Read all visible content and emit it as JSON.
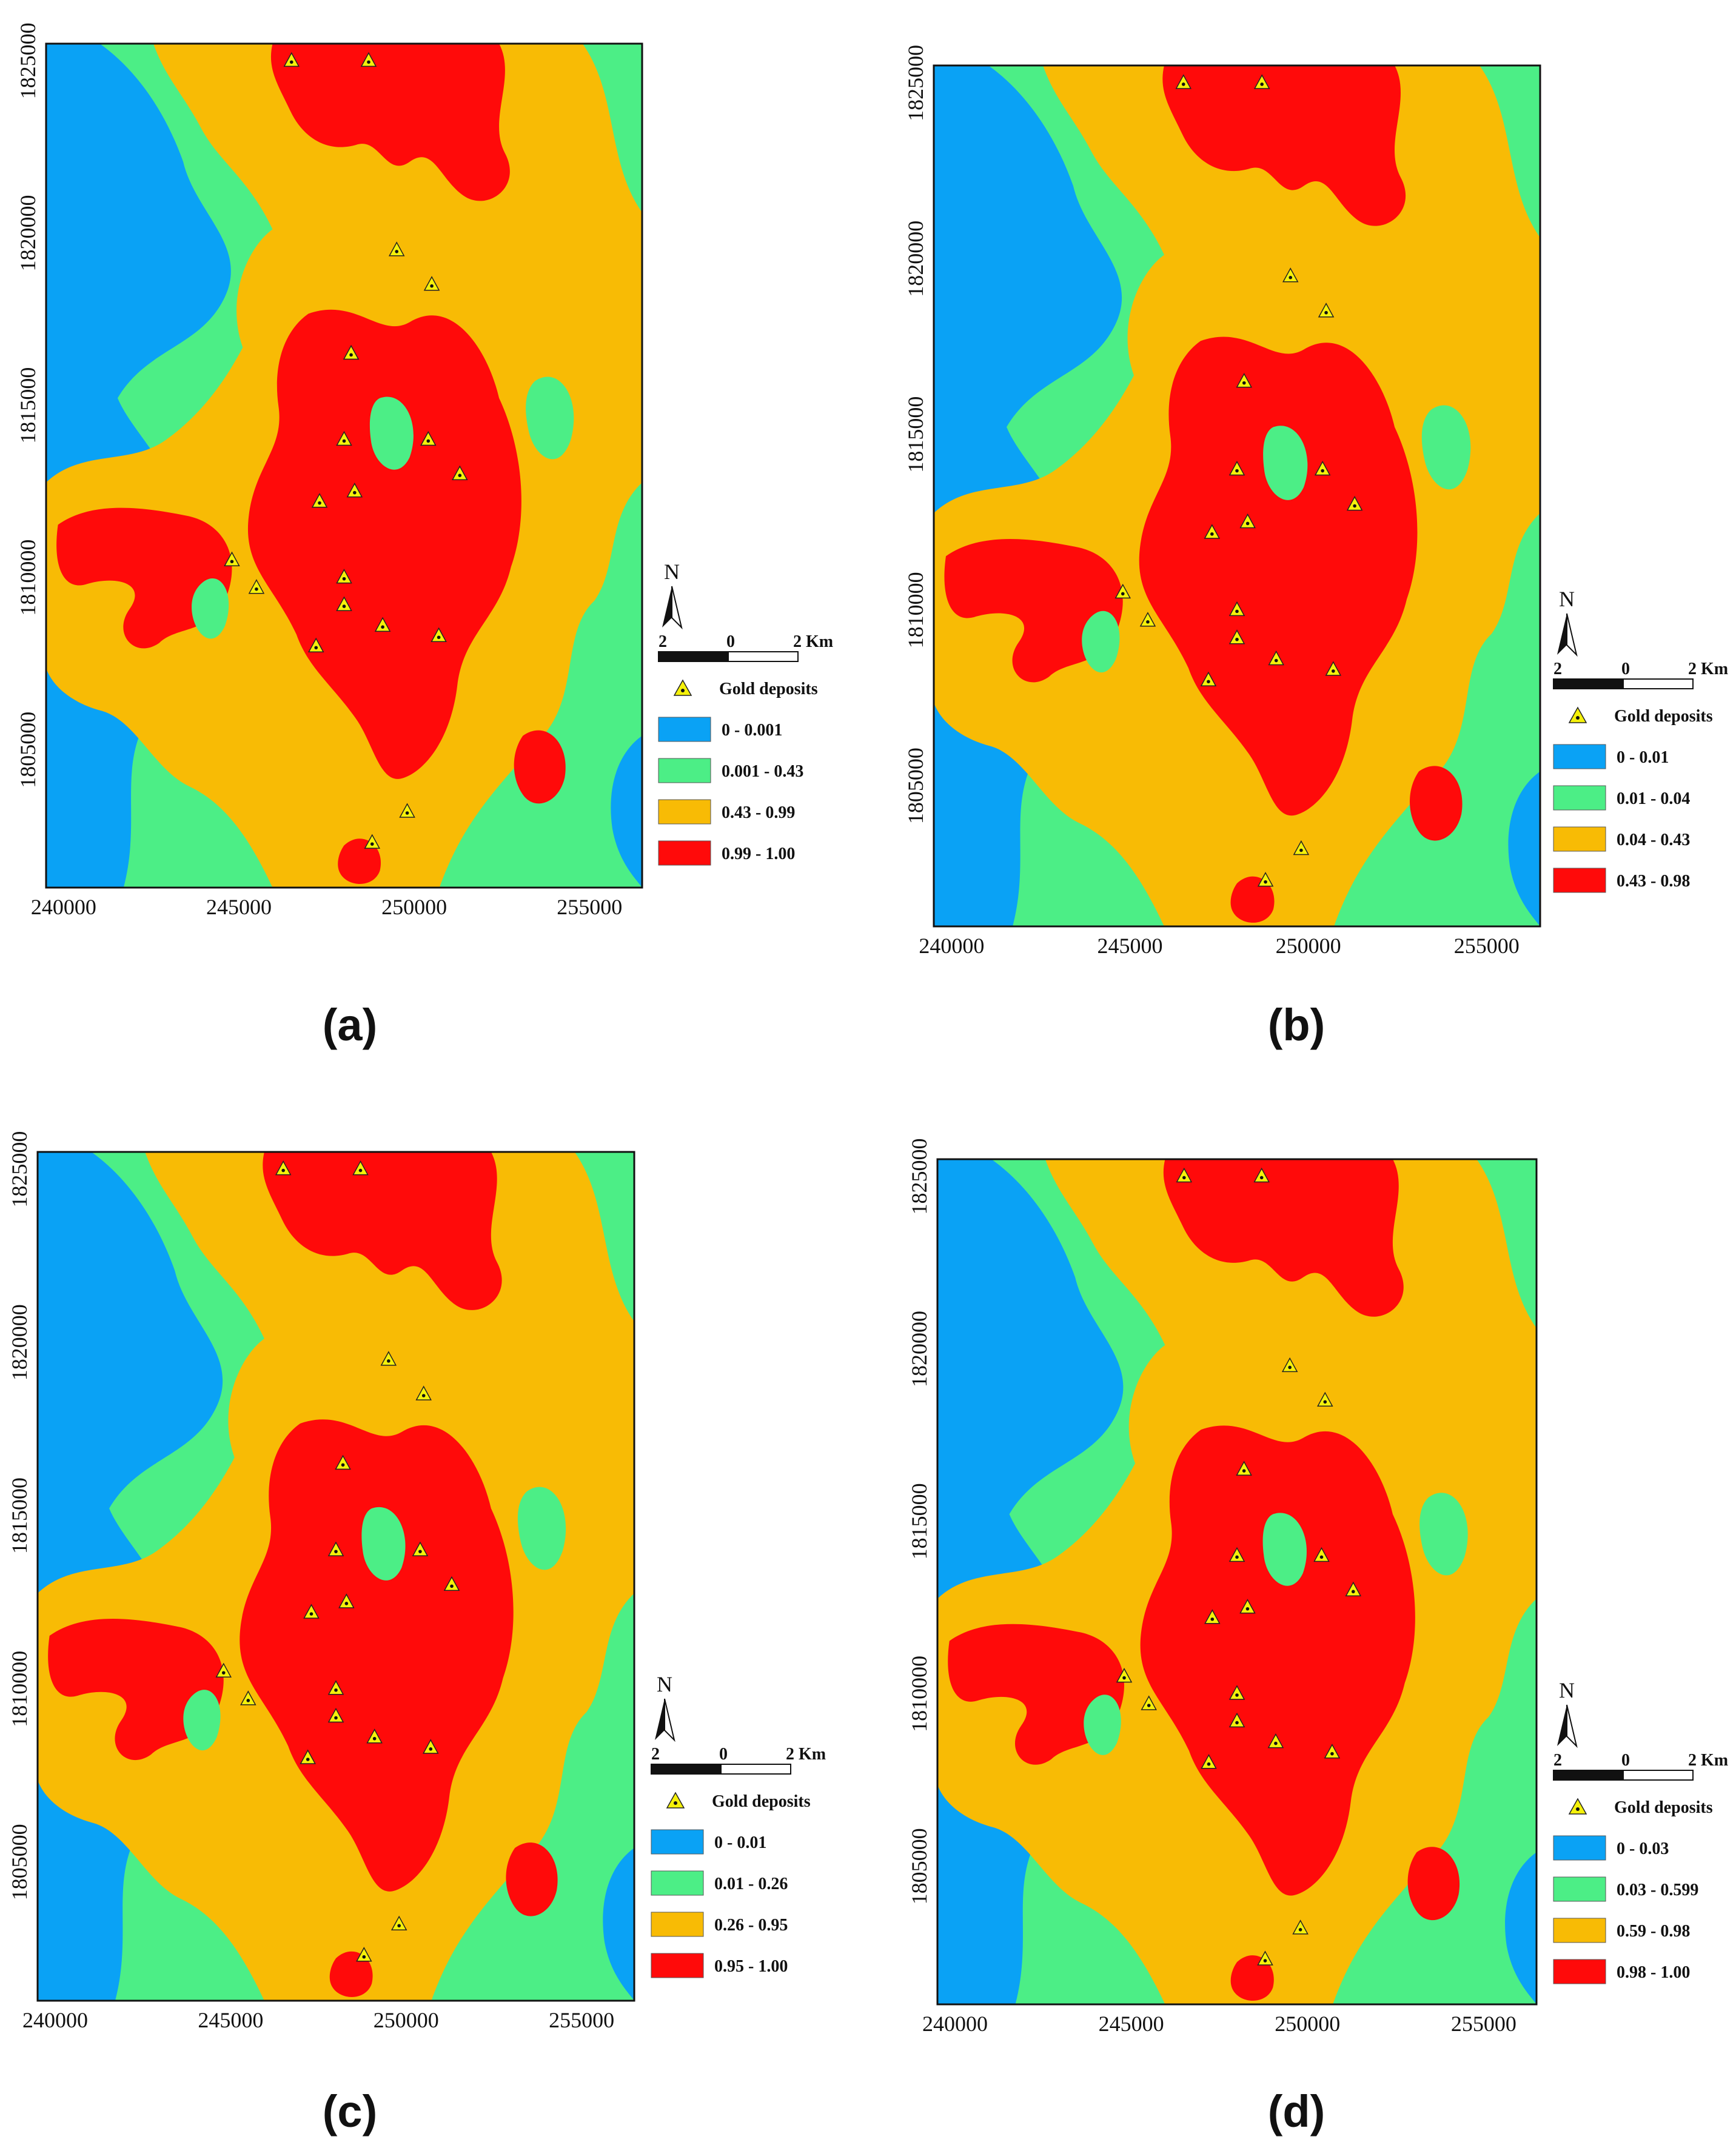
{
  "figure": {
    "panels": [
      {
        "id": "a",
        "label": "(a)",
        "x_ticks": [
          "240000",
          "245000",
          "250000",
          "255000"
        ],
        "y_ticks": [
          "1805000",
          "1810000",
          "1815000",
          "1820000",
          "1825000"
        ],
        "north": "N",
        "scale": {
          "left": "2",
          "mid": "0",
          "right": "2 Km"
        },
        "legend": {
          "deposit_label": "Gold deposits",
          "classes": [
            {
              "range": "0 - 0.001",
              "color": "#0aa2f5"
            },
            {
              "range": "0.001 - 0.43",
              "color": "#4cee86"
            },
            {
              "range": "0.43 - 0.99",
              "color": "#f8bb05"
            },
            {
              "range": "0.99 - 1.00",
              "color": "#ff0a0a"
            }
          ]
        }
      },
      {
        "id": "b",
        "label": "(b)",
        "x_ticks": [
          "240000",
          "245000",
          "250000",
          "255000"
        ],
        "y_ticks": [
          "1805000",
          "1810000",
          "1815000",
          "1820000",
          "1825000"
        ],
        "north": "N",
        "scale": {
          "left": "2",
          "mid": "0",
          "right": "2 Km"
        },
        "legend": {
          "deposit_label": "Gold deposits",
          "classes": [
            {
              "range": "0 - 0.01",
              "color": "#0aa2f5"
            },
            {
              "range": "0.01 - 0.04",
              "color": "#4cee86"
            },
            {
              "range": "0.04 - 0.43",
              "color": "#f8bb05"
            },
            {
              "range": "0.43 - 0.98",
              "color": "#ff0a0a"
            }
          ]
        }
      },
      {
        "id": "c",
        "label": "(c)",
        "x_ticks": [
          "240000",
          "245000",
          "250000",
          "255000"
        ],
        "y_ticks": [
          "1805000",
          "1810000",
          "1815000",
          "1820000",
          "1825000"
        ],
        "north": "N",
        "scale": {
          "left": "2",
          "mid": "0",
          "right": "2 Km"
        },
        "legend": {
          "deposit_label": "Gold deposits",
          "classes": [
            {
              "range": "0 - 0.01",
              "color": "#0aa2f5"
            },
            {
              "range": "0.01 - 0.26",
              "color": "#4cee86"
            },
            {
              "range": "0.26 - 0.95",
              "color": "#f8bb05"
            },
            {
              "range": "0.95 - 1.00",
              "color": "#ff0a0a"
            }
          ]
        }
      },
      {
        "id": "d",
        "label": "(d)",
        "x_ticks": [
          "240000",
          "245000",
          "250000",
          "255000"
        ],
        "y_ticks": [
          "1805000",
          "1810000",
          "1815000",
          "1820000",
          "1825000"
        ],
        "north": "N",
        "scale": {
          "left": "2",
          "mid": "0",
          "right": "2 Km"
        },
        "legend": {
          "deposit_label": "Gold deposits",
          "classes": [
            {
              "range": "0 - 0.03",
              "color": "#0aa2f5"
            },
            {
              "range": "0.03 - 0.599",
              "color": "#4cee86"
            },
            {
              "range": "0.59 - 0.98",
              "color": "#f8bb05"
            },
            {
              "range": "0.98 - 1.00",
              "color": "#ff0a0a"
            }
          ]
        }
      }
    ],
    "deposit_symbol": {
      "fill": "#f5f10a",
      "stroke": "#222222",
      "dot": "#111111"
    }
  }
}
